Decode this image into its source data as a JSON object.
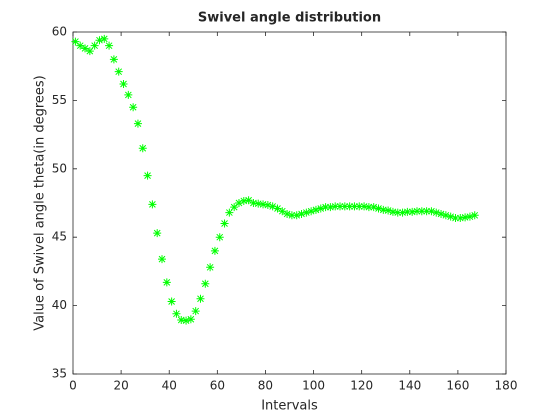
{
  "chart_data": {
    "type": "scatter",
    "title": "Swivel angle distribution",
    "xlabel": "Intervals",
    "ylabel": "Value of Swivel angle theta(in degrees)",
    "color": "#00ff00",
    "x": [
      1,
      3,
      5,
      7,
      9,
      11,
      13,
      15,
      17,
      19,
      21,
      23,
      25,
      27,
      29,
      31,
      33,
      35,
      37,
      39,
      41,
      43,
      45,
      47,
      49,
      51,
      53,
      55,
      57,
      59,
      61,
      63,
      65,
      67,
      69,
      71,
      73,
      75,
      77,
      79,
      81,
      83,
      85,
      87,
      89,
      91,
      93,
      95,
      97,
      99,
      101,
      103,
      105,
      107,
      109,
      111,
      113,
      115,
      117,
      119,
      121,
      123,
      125,
      127,
      129,
      131,
      133,
      135,
      137,
      139,
      141,
      143,
      145,
      147,
      149,
      151,
      153,
      155,
      157,
      159,
      161,
      163,
      165,
      167
    ],
    "values": [
      59.3,
      59.0,
      58.8,
      58.6,
      59.0,
      59.4,
      59.5,
      59.0,
      58.0,
      57.1,
      56.2,
      55.4,
      54.5,
      53.3,
      51.5,
      49.5,
      47.4,
      45.3,
      43.4,
      41.7,
      40.3,
      39.4,
      38.95,
      38.9,
      39.0,
      39.6,
      40.5,
      41.6,
      42.8,
      44.0,
      45.0,
      46.0,
      46.8,
      47.2,
      47.5,
      47.65,
      47.7,
      47.5,
      47.45,
      47.4,
      47.35,
      47.25,
      47.1,
      46.9,
      46.7,
      46.6,
      46.6,
      46.7,
      46.8,
      46.9,
      47.0,
      47.1,
      47.2,
      47.2,
      47.25,
      47.25,
      47.25,
      47.25,
      47.25,
      47.25,
      47.25,
      47.2,
      47.2,
      47.1,
      47.0,
      46.95,
      46.85,
      46.8,
      46.8,
      46.85,
      46.85,
      46.9,
      46.9,
      46.9,
      46.9,
      46.8,
      46.7,
      46.6,
      46.5,
      46.4,
      46.4,
      46.45,
      46.5,
      46.6
    ],
    "xlim": [
      0,
      180
    ],
    "xticks": [
      0,
      20,
      40,
      60,
      80,
      100,
      120,
      140,
      160,
      180
    ],
    "ylim": [
      35,
      60
    ],
    "yticks": [
      35,
      40,
      45,
      50,
      55,
      60
    ]
  }
}
